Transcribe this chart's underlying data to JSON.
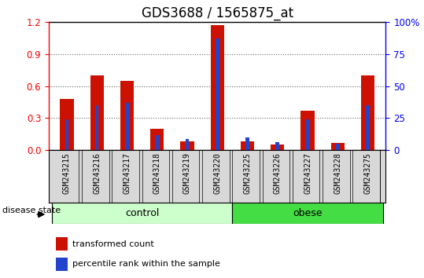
{
  "title": "GDS3688 / 1565875_at",
  "samples": [
    "GSM243215",
    "GSM243216",
    "GSM243217",
    "GSM243218",
    "GSM243219",
    "GSM243220",
    "GSM243225",
    "GSM243226",
    "GSM243227",
    "GSM243228",
    "GSM243275"
  ],
  "transformed_count": [
    0.48,
    0.7,
    0.65,
    0.2,
    0.08,
    1.17,
    0.08,
    0.05,
    0.37,
    0.07,
    0.7
  ],
  "percentile_rank": [
    24,
    35,
    37,
    12,
    9,
    87,
    10,
    6,
    24,
    5,
    35
  ],
  "ylim_left": [
    0,
    1.2
  ],
  "ylim_right": [
    0,
    100
  ],
  "yticks_left": [
    0,
    0.3,
    0.6,
    0.9,
    1.2
  ],
  "yticks_right": [
    0,
    25,
    50,
    75,
    100
  ],
  "ytick_labels_right": [
    "0",
    "25",
    "50",
    "75",
    "100%"
  ],
  "bar_color_red": "#CC1100",
  "bar_color_blue": "#2244CC",
  "red_bar_width": 0.45,
  "blue_bar_width": 0.12,
  "groups": [
    {
      "label": "control",
      "indices": [
        0,
        1,
        2,
        3,
        4,
        5
      ],
      "color": "#ccffcc"
    },
    {
      "label": "obese",
      "indices": [
        6,
        7,
        8,
        9,
        10
      ],
      "color": "#44dd44"
    }
  ],
  "disease_state_label": "disease state",
  "legend_red": "transformed count",
  "legend_blue": "percentile rank within the sample",
  "title_fontsize": 12,
  "tick_fontsize": 8.5,
  "sample_fontsize": 7,
  "label_fontsize": 9,
  "xtick_gray": "#d8d8d8"
}
